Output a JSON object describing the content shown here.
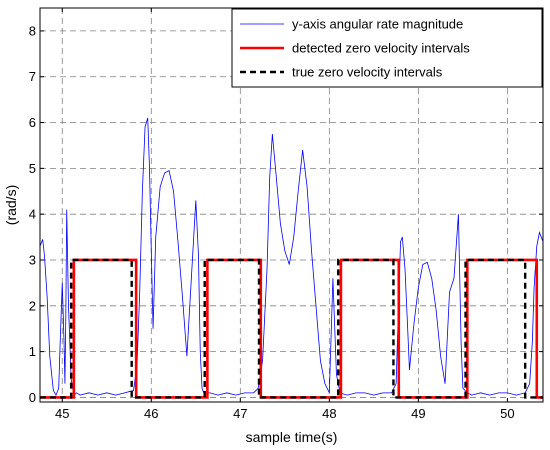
{
  "chart_data": {
    "type": "line",
    "title": "",
    "xlabel": "sample time(s)",
    "ylabel": "(rad/s)",
    "xlim": [
      44.75,
      50.4
    ],
    "ylim": [
      -0.1,
      8.5
    ],
    "xticks": [
      "45",
      "46",
      "47",
      "48",
      "49",
      "50"
    ],
    "yticks": [
      "0",
      "1",
      "2",
      "3",
      "4",
      "5",
      "6",
      "7",
      "8"
    ],
    "grid": true,
    "legend_position": "top-right",
    "series": [
      {
        "name": "y-axis angular rate magnitude",
        "color": "#0000ff",
        "style": "solid-thin",
        "x": [
          44.75,
          44.78,
          44.8,
          44.83,
          44.86,
          44.9,
          44.93,
          44.96,
          44.98,
          45.0,
          45.02,
          45.03,
          45.04,
          45.05,
          45.07,
          45.1,
          45.13,
          45.16,
          45.2,
          45.3,
          45.4,
          45.5,
          45.6,
          45.7,
          45.8,
          45.84,
          45.87,
          45.9,
          45.93,
          45.96,
          45.98,
          46.0,
          46.02,
          46.05,
          46.1,
          46.15,
          46.2,
          46.25,
          46.3,
          46.35,
          46.4,
          46.45,
          46.5,
          46.53,
          46.55,
          46.57,
          46.6,
          46.63,
          46.66,
          46.75,
          46.85,
          46.95,
          47.05,
          47.15,
          47.2,
          47.25,
          47.3,
          47.33,
          47.36,
          47.4,
          47.45,
          47.5,
          47.55,
          47.6,
          47.65,
          47.7,
          47.75,
          47.8,
          47.85,
          47.9,
          47.95,
          48.0,
          48.04,
          48.08,
          48.12,
          48.2,
          48.3,
          48.4,
          48.5,
          48.6,
          48.7,
          48.75,
          48.78,
          48.8,
          48.82,
          48.85,
          48.88,
          48.9,
          48.95,
          49.0,
          49.05,
          49.1,
          49.15,
          49.2,
          49.25,
          49.3,
          49.35,
          49.4,
          49.45,
          49.48,
          49.5,
          49.55,
          49.6,
          49.7,
          49.8,
          49.9,
          50.0,
          50.1,
          50.2,
          50.25,
          50.28,
          50.3,
          50.33,
          50.36,
          50.4
        ],
        "y": [
          3.3,
          3.45,
          3.1,
          2.2,
          0.9,
          0.15,
          0.05,
          0.2,
          1.4,
          2.5,
          1.2,
          0.3,
          1.8,
          4.1,
          2.0,
          0.4,
          0.05,
          0.1,
          0.05,
          0.1,
          0.05,
          0.1,
          0.05,
          0.1,
          0.15,
          0.7,
          2.3,
          4.5,
          5.9,
          6.1,
          5.0,
          3.2,
          1.5,
          3.5,
          4.6,
          4.9,
          4.95,
          4.5,
          3.4,
          2.2,
          0.9,
          2.6,
          4.3,
          3.1,
          1.0,
          0.2,
          0.05,
          0.1,
          0.1,
          0.05,
          0.1,
          0.05,
          0.1,
          0.1,
          0.2,
          0.8,
          2.8,
          4.8,
          5.75,
          4.9,
          3.8,
          3.2,
          2.9,
          3.5,
          4.5,
          5.4,
          4.6,
          3.2,
          2.0,
          0.8,
          0.3,
          0.1,
          2.6,
          0.5,
          0.1,
          0.05,
          0.1,
          0.1,
          0.05,
          0.1,
          0.1,
          0.3,
          2.2,
          3.4,
          3.5,
          2.8,
          1.5,
          0.6,
          1.6,
          2.4,
          2.9,
          2.95,
          2.6,
          1.9,
          0.9,
          0.3,
          2.3,
          2.6,
          4.0,
          1.2,
          0.2,
          0.1,
          0.05,
          0.1,
          0.05,
          0.1,
          0.1,
          0.05,
          0.1,
          0.3,
          1.2,
          2.4,
          3.3,
          3.6,
          3.4
        ]
      },
      {
        "name": "detected zero velocity intervals",
        "color": "#ff0000",
        "style": "solid-thick",
        "x": [
          44.75,
          45.13,
          45.13,
          45.83,
          45.83,
          46.63,
          46.63,
          47.23,
          47.23,
          48.13,
          48.13,
          48.78,
          48.78,
          49.55,
          49.55,
          50.33,
          50.33,
          50.4
        ],
        "y": [
          0,
          0,
          3,
          3,
          0,
          0,
          3,
          3,
          0,
          0,
          3,
          3,
          0,
          0,
          3,
          3,
          0,
          0
        ]
      },
      {
        "name": "true zero velocity intervals",
        "color": "#000000",
        "style": "dashed-thick",
        "x": [
          44.75,
          45.1,
          45.1,
          45.78,
          45.78,
          46.6,
          46.6,
          47.21,
          47.21,
          48.1,
          48.1,
          48.72,
          48.72,
          49.53,
          49.53,
          50.2,
          50.2,
          50.4
        ],
        "y": [
          0,
          0,
          3,
          3,
          0,
          0,
          3,
          3,
          0,
          0,
          3,
          3,
          0,
          0,
          3,
          3,
          0,
          0
        ]
      }
    ]
  }
}
